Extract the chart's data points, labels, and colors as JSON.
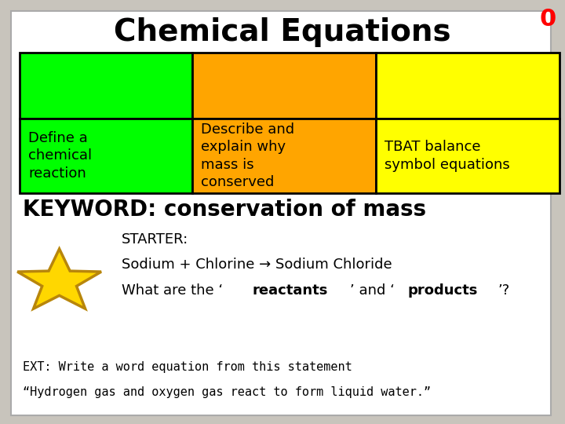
{
  "title": "Chemical Equations",
  "title_fontsize": 28,
  "title_fontweight": "bold",
  "background_color": "#c8c4bc",
  "table_colors": [
    "#00ff00",
    "#ffa500",
    "#ffff00"
  ],
  "table_texts": [
    "Define a\nchemical\nreaction",
    "Describe and\nexplain why\nmass is\nconserved",
    "TBAT balance\nsymbol equations"
  ],
  "table_text_fontsize": 13,
  "keyword_text": "KEYWORD: conservation of mass",
  "keyword_fontsize": 20,
  "keyword_fontweight": "bold",
  "starter_line1": "STARTER:",
  "starter_line2": "Sodium + Chlorine → Sodium Chloride",
  "starter_line3": "What are the ‘reactants’ and ‘products’?",
  "starter_line3_bold_words": [
    "reactants",
    "products"
  ],
  "starter_fontsize": 13,
  "ext_text1": "EXT: Write a word equation from this statement",
  "ext_text2": "“Hydrogen gas and oxygen gas react to form liquid water.”",
  "ext_fontsize": 11,
  "star_color": "#ffd700",
  "star_edge_color": "#b8860b",
  "counter_text": "0",
  "counter_color": "#ff0000",
  "counter_fontsize": 22
}
